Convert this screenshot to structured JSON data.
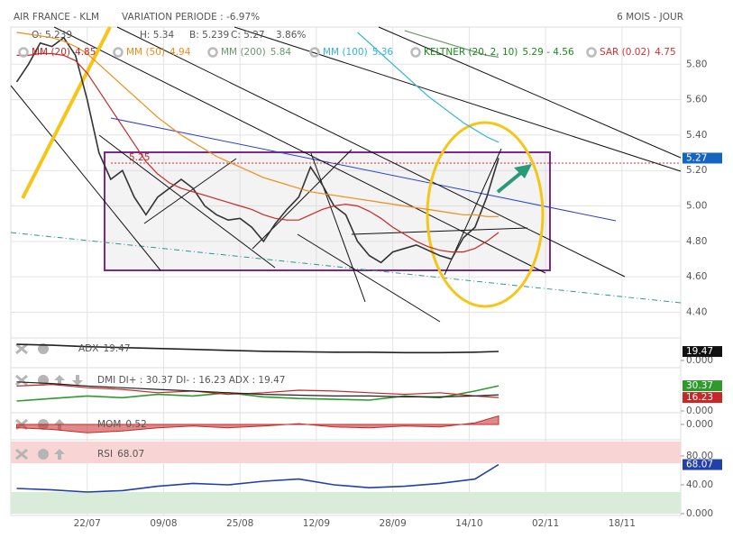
{
  "chart_data": [
    {
      "type": "line",
      "title": "AIR FRANCE - KLM",
      "subtitle": "VARIATION PERIODE : -6.97%",
      "period": "6 MOIS - JOUR",
      "ohlc": [
        "O: 5.239",
        "H: 5.34",
        "B: 5.239",
        "C: 5.27",
        "3.86%"
      ],
      "level_label": "5.25",
      "xlim": [
        0,
        114
      ],
      "xticks": [
        {
          "value": 13,
          "label": "22/07"
        },
        {
          "value": 26,
          "label": "09/08"
        },
        {
          "value": 39,
          "label": "25/08"
        },
        {
          "value": 52,
          "label": "12/09"
        },
        {
          "value": 65,
          "label": "28/09"
        },
        {
          "value": 78,
          "label": "14/10"
        },
        {
          "value": 91,
          "label": "02/11"
        },
        {
          "value": 104,
          "label": "18/11"
        }
      ],
      "ylim": [
        4.27,
        6.01
      ],
      "yticks": [
        {
          "value": 4.4,
          "label": "4.40"
        },
        {
          "value": 4.6,
          "label": "4.60"
        },
        {
          "value": 4.8,
          "label": "4.80"
        },
        {
          "value": 5.0,
          "label": "5.00"
        },
        {
          "value": 5.2,
          "label": "5.20"
        },
        {
          "value": 5.4,
          "label": "5.40"
        },
        {
          "value": 5.6,
          "label": "5.60"
        },
        {
          "value": 5.8,
          "label": "5.80"
        }
      ],
      "grid": true,
      "x": [
        1,
        3,
        5,
        7,
        9,
        11,
        13,
        15,
        17,
        19,
        21,
        23,
        25,
        27,
        29,
        31,
        33,
        35,
        37,
        39,
        41,
        43,
        45,
        47,
        49,
        51,
        53,
        55,
        57,
        59,
        61,
        63,
        65,
        67,
        69,
        71,
        73,
        75,
        77,
        79,
        81,
        83
      ],
      "series": [
        {
          "name": "C",
          "color": "#333333",
          "badge_color": "#1565c0",
          "value_label": "5.27",
          "values": [
            5.7,
            5.8,
            5.92,
            5.9,
            5.95,
            5.85,
            5.6,
            5.3,
            5.15,
            5.2,
            5.05,
            4.95,
            5.05,
            5.1,
            5.15,
            5.1,
            5.0,
            4.95,
            4.92,
            4.93,
            4.88,
            4.8,
            4.9,
            4.98,
            5.05,
            5.22,
            5.12,
            5.0,
            4.95,
            4.8,
            4.72,
            4.68,
            4.74,
            4.76,
            4.78,
            4.75,
            4.72,
            4.7,
            4.82,
            4.88,
            5.05,
            5.27
          ]
        },
        {
          "name": "MM (20)",
          "color": "#c62828",
          "legend_value": "4.85",
          "values": [
            5.85,
            5.85,
            5.86,
            5.86,
            5.85,
            5.82,
            5.75,
            5.65,
            5.55,
            5.45,
            5.35,
            5.25,
            5.18,
            5.13,
            5.1,
            5.08,
            5.06,
            5.04,
            5.02,
            5.0,
            4.98,
            4.95,
            4.93,
            4.92,
            4.92,
            4.95,
            4.98,
            5.0,
            5.01,
            5.0,
            4.97,
            4.93,
            4.88,
            4.84,
            4.8,
            4.77,
            4.75,
            4.74,
            4.74,
            4.76,
            4.8,
            4.85
          ]
        },
        {
          "name": "MM (50)",
          "color": "#ef8c1a",
          "legend_value": "4.94",
          "values": [
            5.98,
            5.97,
            5.96,
            5.95,
            5.93,
            5.9,
            5.86,
            5.8,
            5.74,
            5.68,
            5.62,
            5.56,
            5.5,
            5.45,
            5.4,
            5.36,
            5.32,
            5.28,
            5.25,
            5.22,
            5.19,
            5.16,
            5.14,
            5.12,
            5.1,
            5.08,
            5.07,
            5.06,
            5.05,
            5.04,
            5.03,
            5.02,
            5.01,
            5.0,
            4.99,
            4.98,
            4.97,
            4.96,
            4.95,
            4.95,
            4.94,
            4.94
          ]
        },
        {
          "name": "MM (200)",
          "color": "#6a9a6a",
          "legend_value": "5.84",
          "values": [
            null,
            null,
            null,
            null,
            null,
            null,
            null,
            null,
            null,
            null,
            null,
            null,
            null,
            null,
            null,
            null,
            null,
            null,
            null,
            null,
            null,
            null,
            null,
            null,
            null,
            null,
            null,
            null,
            null,
            null,
            null,
            null,
            null,
            5.99,
            5.97,
            5.95,
            5.93,
            5.91,
            5.89,
            5.87,
            5.85,
            5.84
          ]
        },
        {
          "name": "MM (100)",
          "color": "#33b5d5",
          "legend_value": "5.36",
          "values": [
            null,
            null,
            null,
            null,
            null,
            null,
            null,
            null,
            null,
            null,
            null,
            null,
            null,
            null,
            null,
            null,
            null,
            null,
            null,
            null,
            null,
            null,
            null,
            null,
            null,
            null,
            null,
            null,
            null,
            5.98,
            5.92,
            5.86,
            5.8,
            5.74,
            5.68,
            5.62,
            5.57,
            5.52,
            5.47,
            5.43,
            5.39,
            5.36
          ]
        }
      ],
      "indicators": [
        {
          "name": "KELTNER (20, 2, 10)",
          "value": "5.29 - 4.56",
          "color": "#1b8a1b"
        },
        {
          "name": "SAR (0.02)",
          "value": "4.75",
          "color": "#d32f2f"
        }
      ]
    },
    {
      "type": "line",
      "title": "ADX",
      "ylim": [
        0,
        45
      ],
      "yticks": [
        {
          "value": 0,
          "label": "0.000"
        }
      ],
      "x": [
        1,
        7,
        13,
        19,
        25,
        31,
        37,
        43,
        49,
        55,
        61,
        67,
        73,
        79,
        83
      ],
      "series": [
        {
          "name": "ADX",
          "color": "#222222",
          "badge_color": "#111111",
          "value_label": "19.47",
          "values": [
            35,
            33,
            30,
            28,
            26,
            24,
            22,
            20,
            19,
            18,
            18,
            17,
            17,
            18,
            19.47
          ]
        }
      ]
    },
    {
      "type": "line",
      "title": "DMI DI+ : 30.37 DI- : 16.23 ADX : 19.47",
      "ylim": [
        0,
        50
      ],
      "yticks": [
        {
          "value": 0,
          "label": "0.000"
        }
      ],
      "x": [
        1,
        7,
        13,
        19,
        25,
        31,
        37,
        43,
        49,
        55,
        61,
        67,
        73,
        79,
        83
      ],
      "series": [
        {
          "name": "DI+",
          "color": "#2e9a2e",
          "value_label": "30.37",
          "values": [
            12,
            15,
            18,
            16,
            20,
            18,
            22,
            17,
            15,
            14,
            13,
            18,
            16,
            24,
            30.37
          ]
        },
        {
          "name": "DI-",
          "color": "#c62828",
          "value_label": "16.23",
          "values": [
            30,
            32,
            28,
            26,
            22,
            24,
            20,
            22,
            25,
            24,
            22,
            20,
            22,
            18,
            16.23
          ]
        },
        {
          "name": "ADX",
          "color": "#222222",
          "values": [
            35,
            33,
            30,
            28,
            26,
            24,
            22,
            20,
            19,
            18,
            18,
            17,
            17,
            18,
            19.47
          ]
        }
      ]
    },
    {
      "type": "area",
      "title": "MOM",
      "ylim": [
        -0.6,
        0.6
      ],
      "yticks": [
        {
          "value": 0,
          "label": "0.000"
        }
      ],
      "x": [
        1,
        7,
        13,
        19,
        25,
        31,
        37,
        43,
        49,
        55,
        61,
        67,
        73,
        79,
        83
      ],
      "series": [
        {
          "name": "MOM",
          "color": "#c62828",
          "value_label": "0.52",
          "values": [
            -0.2,
            -0.3,
            -0.5,
            -0.4,
            -0.2,
            -0.1,
            -0.2,
            -0.1,
            0.05,
            -0.15,
            -0.2,
            -0.1,
            -0.15,
            0.1,
            0.52
          ]
        }
      ]
    },
    {
      "type": "line",
      "title": "RSI",
      "ylim": [
        0,
        100
      ],
      "yticks": [
        {
          "value": 0,
          "label": "0.000"
        },
        {
          "value": 40,
          "label": "40.00"
        },
        {
          "value": 80,
          "label": "80.00"
        }
      ],
      "zones": [
        {
          "from": 70,
          "to": 100,
          "color": "#f9d4d4"
        },
        {
          "from": 0,
          "to": 30,
          "color": "#d9ecd9"
        }
      ],
      "x": [
        1,
        7,
        13,
        19,
        25,
        31,
        37,
        43,
        49,
        55,
        61,
        67,
        73,
        79,
        83
      ],
      "series": [
        {
          "name": "RSI",
          "color": "#2340a8",
          "badge_color": "#2340a8",
          "value_label": "68.07",
          "values": [
            35,
            33,
            30,
            32,
            38,
            42,
            40,
            45,
            48,
            40,
            36,
            38,
            42,
            48,
            68.07
          ]
        }
      ]
    }
  ]
}
